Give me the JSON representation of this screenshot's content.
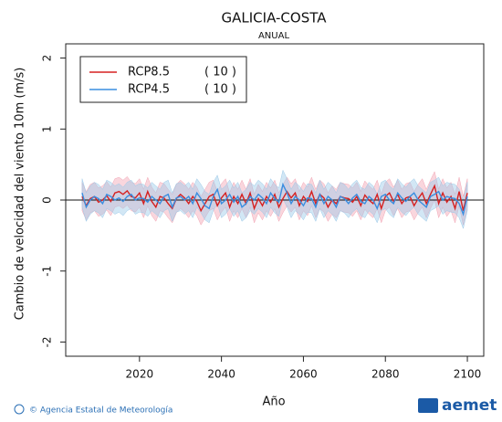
{
  "chart_data": {
    "type": "line",
    "title": "GALICIA-COSTA",
    "subtitle": "ANUAL",
    "x_label": "Año",
    "y_label": "Cambio de velocidad del viento 10m (m/s)",
    "xlim": [
      2002,
      2104
    ],
    "xticks": [
      2020,
      2040,
      2060,
      2080,
      2100
    ],
    "ylim": [
      -2.2,
      2.2
    ],
    "yticks": [
      -2,
      -1,
      0,
      1,
      2
    ],
    "reference_line": 0,
    "legend": "upper left",
    "x": [
      2006,
      2007,
      2008,
      2009,
      2010,
      2011,
      2012,
      2013,
      2014,
      2015,
      2016,
      2017,
      2018,
      2019,
      2020,
      2021,
      2022,
      2023,
      2024,
      2025,
      2026,
      2027,
      2028,
      2029,
      2030,
      2031,
      2032,
      2033,
      2034,
      2035,
      2036,
      2037,
      2038,
      2039,
      2040,
      2041,
      2042,
      2043,
      2044,
      2045,
      2046,
      2047,
      2048,
      2049,
      2050,
      2051,
      2052,
      2053,
      2054,
      2055,
      2056,
      2057,
      2058,
      2059,
      2060,
      2061,
      2062,
      2063,
      2064,
      2065,
      2066,
      2067,
      2068,
      2069,
      2070,
      2071,
      2072,
      2073,
      2074,
      2075,
      2076,
      2077,
      2078,
      2079,
      2080,
      2081,
      2082,
      2083,
      2084,
      2085,
      2086,
      2087,
      2088,
      2089,
      2090,
      2091,
      2092,
      2093,
      2094,
      2095,
      2096,
      2097,
      2098,
      2099,
      2100
    ],
    "series": [
      {
        "name": "RCP8.5",
        "members_label": "( 10 )",
        "color": "#d62020",
        "band_color": "#f2a5b4",
        "values": [
          0.05,
          -0.08,
          0.02,
          0.05,
          -0.03,
          0.0,
          0.06,
          -0.02,
          0.1,
          0.12,
          0.08,
          0.13,
          0.05,
          0.03,
          0.1,
          -0.05,
          0.12,
          -0.02,
          -0.1,
          0.05,
          0.03,
          -0.05,
          -0.12,
          0.02,
          0.08,
          0.03,
          -0.05,
          0.05,
          -0.02,
          -0.15,
          -0.05,
          0.05,
          0.08,
          -0.08,
          0.03,
          0.1,
          -0.1,
          0.05,
          -0.05,
          0.08,
          -0.05,
          0.1,
          -0.12,
          0.02,
          -0.08,
          0.05,
          -0.03,
          0.08,
          -0.1,
          0.02,
          0.12,
          0.03,
          0.1,
          -0.08,
          0.05,
          -0.02,
          0.12,
          -0.05,
          0.08,
          0.03,
          -0.1,
          0.0,
          -0.05,
          0.05,
          0.03,
          0.02,
          -0.03,
          0.05,
          -0.08,
          0.07,
          0.0,
          -0.05,
          0.08,
          -0.12,
          0.05,
          0.1,
          -0.02,
          0.08,
          -0.05,
          0.03,
          0.05,
          -0.08,
          0.02,
          0.1,
          -0.05,
          0.08,
          0.2,
          -0.05,
          0.1,
          -0.03,
          0.05,
          -0.12,
          0.12,
          -0.15,
          0.1
        ],
        "lower": [
          -0.15,
          -0.28,
          -0.18,
          -0.15,
          -0.23,
          -0.2,
          -0.14,
          -0.22,
          -0.1,
          -0.08,
          -0.12,
          -0.07,
          -0.15,
          -0.17,
          -0.1,
          -0.25,
          -0.08,
          -0.22,
          -0.3,
          -0.15,
          -0.17,
          -0.25,
          -0.32,
          -0.18,
          -0.12,
          -0.17,
          -0.25,
          -0.15,
          -0.22,
          -0.35,
          -0.25,
          -0.15,
          -0.12,
          -0.28,
          -0.17,
          -0.1,
          -0.3,
          -0.15,
          -0.25,
          -0.12,
          -0.25,
          -0.1,
          -0.32,
          -0.18,
          -0.28,
          -0.15,
          -0.23,
          -0.12,
          -0.3,
          -0.18,
          -0.08,
          -0.17,
          -0.1,
          -0.28,
          -0.15,
          -0.22,
          -0.08,
          -0.25,
          -0.12,
          -0.17,
          -0.3,
          -0.2,
          -0.25,
          -0.15,
          -0.17,
          -0.18,
          -0.23,
          -0.15,
          -0.28,
          -0.13,
          -0.2,
          -0.25,
          -0.12,
          -0.32,
          -0.15,
          -0.1,
          -0.22,
          -0.12,
          -0.25,
          -0.17,
          -0.15,
          -0.28,
          -0.18,
          -0.1,
          -0.25,
          -0.12,
          0.0,
          -0.25,
          -0.1,
          -0.23,
          -0.15,
          -0.32,
          -0.08,
          -0.35,
          -0.1
        ],
        "upper": [
          0.25,
          0.12,
          0.22,
          0.25,
          0.17,
          0.2,
          0.26,
          0.18,
          0.3,
          0.32,
          0.28,
          0.33,
          0.25,
          0.23,
          0.3,
          0.15,
          0.32,
          0.18,
          0.1,
          0.25,
          0.23,
          0.15,
          0.08,
          0.22,
          0.28,
          0.23,
          0.15,
          0.25,
          0.18,
          0.05,
          0.15,
          0.25,
          0.28,
          0.12,
          0.23,
          0.3,
          0.1,
          0.25,
          0.15,
          0.28,
          0.15,
          0.3,
          0.08,
          0.22,
          0.12,
          0.25,
          0.17,
          0.28,
          0.1,
          0.22,
          0.32,
          0.23,
          0.3,
          0.12,
          0.25,
          0.18,
          0.32,
          0.15,
          0.28,
          0.23,
          0.1,
          0.2,
          0.15,
          0.25,
          0.23,
          0.22,
          0.17,
          0.25,
          0.12,
          0.27,
          0.2,
          0.15,
          0.28,
          0.08,
          0.25,
          0.3,
          0.18,
          0.28,
          0.15,
          0.23,
          0.25,
          0.12,
          0.22,
          0.3,
          0.15,
          0.28,
          0.4,
          0.15,
          0.3,
          0.17,
          0.25,
          0.08,
          0.32,
          0.05,
          0.3
        ]
      },
      {
        "name": "RCP4.5",
        "members_label": "( 10 )",
        "color": "#3a8ee0",
        "band_color": "#9cc9e8",
        "values": [
          0.1,
          -0.1,
          0.0,
          0.05,
          0.02,
          -0.05,
          0.08,
          0.05,
          0.0,
          0.03,
          -0.02,
          0.05,
          0.08,
          0.0,
          0.03,
          0.02,
          -0.03,
          0.05,
          0.0,
          -0.05,
          0.05,
          0.08,
          -0.1,
          0.03,
          0.05,
          0.0,
          0.05,
          -0.05,
          0.1,
          0.02,
          -0.08,
          -0.12,
          0.05,
          0.15,
          -0.05,
          0.0,
          0.08,
          -0.03,
          0.05,
          -0.1,
          -0.05,
          0.05,
          0.0,
          0.08,
          0.03,
          -0.05,
          0.1,
          0.02,
          -0.03,
          0.22,
          0.1,
          -0.05,
          0.05,
          0.0,
          -0.08,
          0.03,
          0.02,
          -0.1,
          0.08,
          -0.05,
          0.05,
          0.0,
          -0.1,
          0.05,
          0.02,
          -0.05,
          0.03,
          0.08,
          -0.02,
          -0.05,
          0.05,
          0.0,
          -0.12,
          0.05,
          0.08,
          0.0,
          -0.05,
          0.1,
          0.03,
          -0.02,
          0.05,
          0.1,
          0.0,
          -0.05,
          -0.1,
          0.05,
          0.08,
          0.12,
          0.0,
          0.05,
          0.03,
          0.02,
          -0.05,
          -0.2,
          0.05
        ],
        "lower": [
          -0.1,
          -0.3,
          -0.2,
          -0.15,
          -0.18,
          -0.25,
          -0.12,
          -0.15,
          -0.2,
          -0.17,
          -0.22,
          -0.15,
          -0.12,
          -0.2,
          -0.17,
          -0.18,
          -0.23,
          -0.15,
          -0.2,
          -0.25,
          -0.15,
          -0.12,
          -0.3,
          -0.17,
          -0.15,
          -0.2,
          -0.15,
          -0.25,
          -0.1,
          -0.18,
          -0.28,
          -0.32,
          -0.15,
          -0.05,
          -0.25,
          -0.2,
          -0.12,
          -0.23,
          -0.15,
          -0.3,
          -0.25,
          -0.15,
          -0.2,
          -0.12,
          -0.17,
          -0.25,
          -0.1,
          -0.18,
          -0.23,
          0.02,
          -0.1,
          -0.25,
          -0.15,
          -0.2,
          -0.28,
          -0.17,
          -0.18,
          -0.3,
          -0.12,
          -0.25,
          -0.15,
          -0.2,
          -0.3,
          -0.15,
          -0.18,
          -0.25,
          -0.17,
          -0.12,
          -0.22,
          -0.25,
          -0.15,
          -0.2,
          -0.32,
          -0.15,
          -0.12,
          -0.2,
          -0.25,
          -0.1,
          -0.17,
          -0.22,
          -0.15,
          -0.1,
          -0.2,
          -0.25,
          -0.3,
          -0.15,
          -0.12,
          -0.08,
          -0.2,
          -0.15,
          -0.17,
          -0.18,
          -0.25,
          -0.4,
          -0.15
        ],
        "upper": [
          0.3,
          0.1,
          0.2,
          0.25,
          0.22,
          0.15,
          0.28,
          0.25,
          0.2,
          0.23,
          0.18,
          0.25,
          0.28,
          0.2,
          0.23,
          0.22,
          0.17,
          0.25,
          0.2,
          0.15,
          0.25,
          0.28,
          0.1,
          0.23,
          0.25,
          0.2,
          0.25,
          0.15,
          0.3,
          0.22,
          0.12,
          0.08,
          0.25,
          0.35,
          0.15,
          0.2,
          0.28,
          0.17,
          0.25,
          0.1,
          0.15,
          0.25,
          0.2,
          0.28,
          0.23,
          0.15,
          0.3,
          0.22,
          0.17,
          0.42,
          0.3,
          0.15,
          0.25,
          0.2,
          0.12,
          0.23,
          0.22,
          0.1,
          0.28,
          0.15,
          0.25,
          0.2,
          0.1,
          0.25,
          0.22,
          0.15,
          0.23,
          0.28,
          0.18,
          0.15,
          0.25,
          0.2,
          0.08,
          0.25,
          0.28,
          0.2,
          0.15,
          0.3,
          0.23,
          0.18,
          0.25,
          0.3,
          0.2,
          0.15,
          0.1,
          0.25,
          0.28,
          0.32,
          0.2,
          0.25,
          0.23,
          0.22,
          0.15,
          0.0,
          0.25
        ]
      }
    ]
  },
  "footer": {
    "credit": "© Agencia Estatal de Meteorología",
    "logo": "aemet"
  }
}
